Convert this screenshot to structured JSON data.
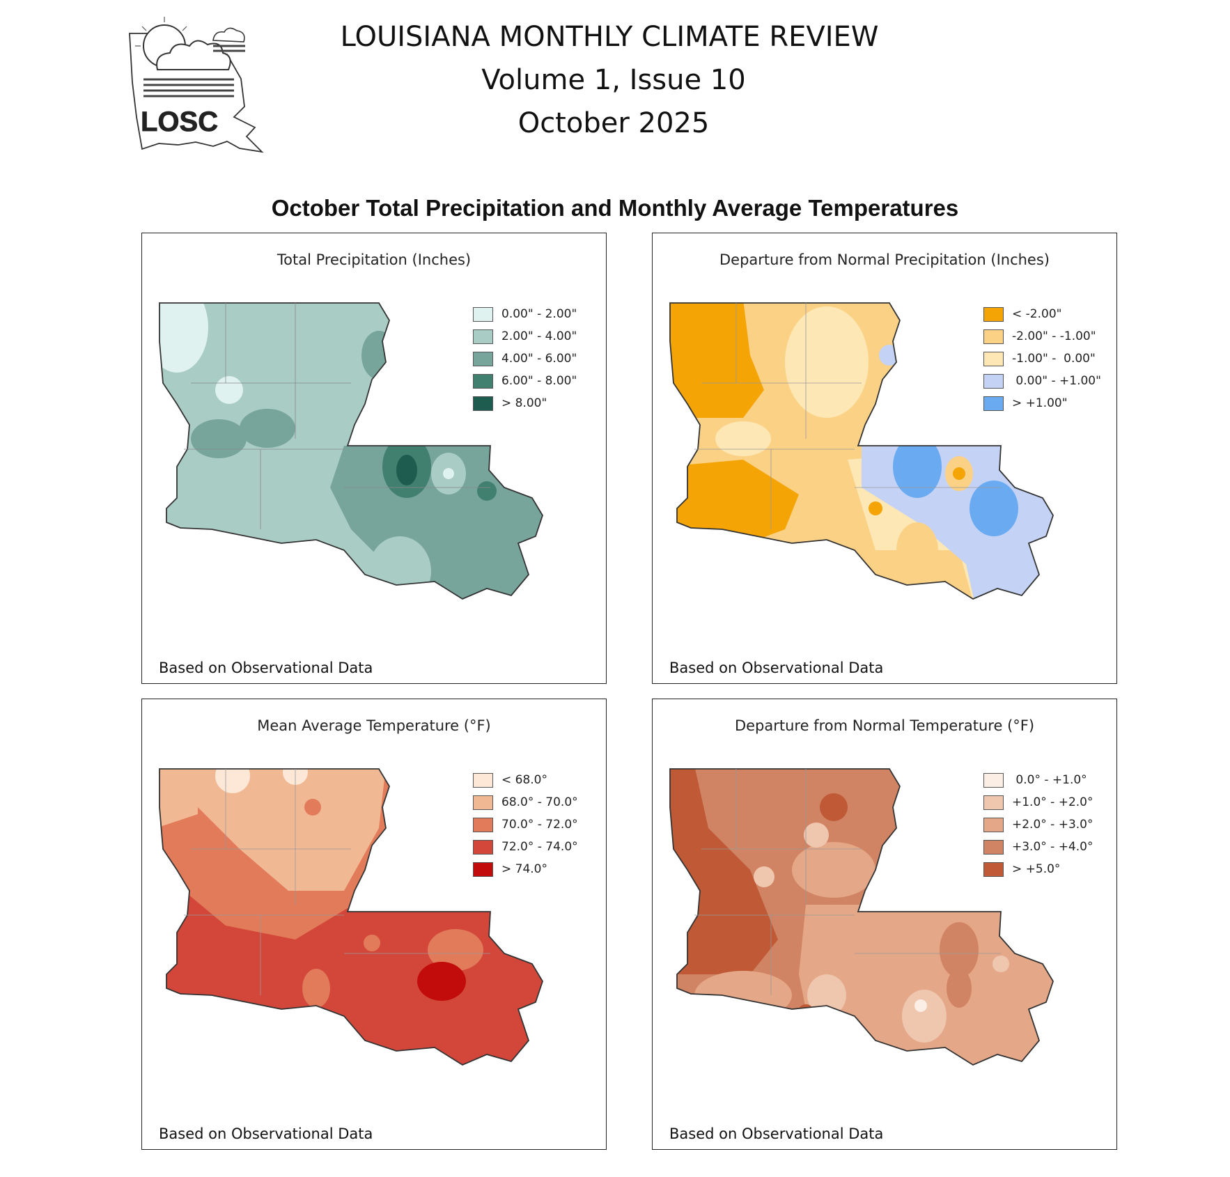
{
  "logo": {
    "text": "LOSC"
  },
  "header": {
    "line1": "LOUISIANA MONTHLY CLIMATE REVIEW",
    "line2": "Volume 1, Issue 10",
    "line3": "October 2025"
  },
  "section_title": "October Total Precipitation and Monthly Average Temperatures",
  "panels": [
    {
      "title": "Total Precipitation (Inches)",
      "footer": "Based on Observational Data",
      "legend": [
        {
          "label": "0.00\" - 2.00\"",
          "color": "#e0f2ef"
        },
        {
          "label": "2.00\" - 4.00\"",
          "color": "#a9ccc4"
        },
        {
          "label": "4.00\" - 6.00\"",
          "color": "#77a49b"
        },
        {
          "label": "6.00\" - 8.00\"",
          "color": "#41806f"
        },
        {
          "label": "> 8.00\"",
          "color": "#1d5c4e"
        }
      ]
    },
    {
      "title": "Departure from Normal Precipitation (Inches)",
      "footer": "Based on Observational Data",
      "legend": [
        {
          "label": "< -2.00\"",
          "color": "#f4a405"
        },
        {
          "label": "-2.00\" - -1.00\"",
          "color": "#fbd186"
        },
        {
          "label": "-1.00\" -  0.00\"",
          "color": "#fde8b5"
        },
        {
          "label": " 0.00\" - +1.00\"",
          "color": "#c4d3f5"
        },
        {
          "label": "> +1.00\"",
          "color": "#6aaaf1"
        }
      ]
    },
    {
      "title": "Mean Average Temperature (°F)",
      "footer": "Based on Observational Data",
      "legend": [
        {
          "label": "< 68.0°",
          "color": "#fde8d8"
        },
        {
          "label": "68.0° - 70.0°",
          "color": "#f1b894"
        },
        {
          "label": "70.0° - 72.0°",
          "color": "#e27b5a"
        },
        {
          "label": "72.0° - 74.0°",
          "color": "#d3473a"
        },
        {
          "label": "> 74.0°",
          "color": "#c20c0c"
        }
      ]
    },
    {
      "title": "Departure from Normal Temperature (°F)",
      "footer": "Based on Observational Data",
      "legend": [
        {
          "label": " 0.0° - +1.0°",
          "color": "#fbeee5"
        },
        {
          "label": "+1.0° - +2.0°",
          "color": "#efc6ae"
        },
        {
          "label": "+2.0° - +3.0°",
          "color": "#e4a787"
        },
        {
          "label": "+3.0° - +4.0°",
          "color": "#d18463"
        },
        {
          "label": "> +5.0°",
          "color": "#bf5936"
        }
      ]
    }
  ]
}
